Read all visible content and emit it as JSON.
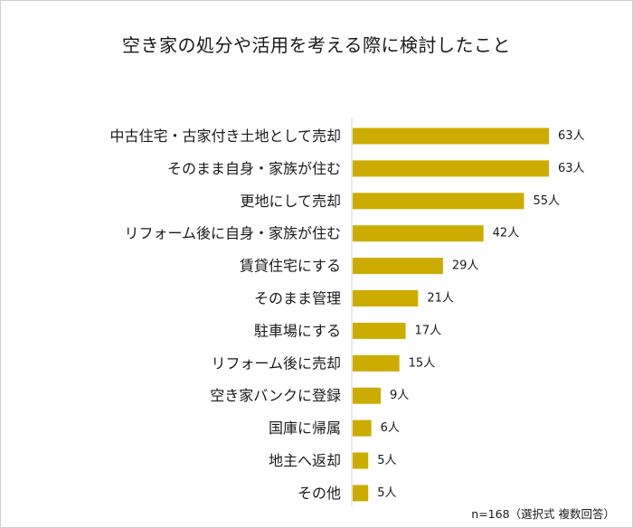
{
  "chart_data": {
    "type": "bar",
    "orientation": "horizontal",
    "title": "空き家の処分や活用を考える際に検討したこと",
    "note": "n=168（選択式 複数回答）",
    "value_suffix": "人",
    "bar_color": "#ccac00",
    "axis_color": "#d0d0d0",
    "text_color": "#1a1a1a",
    "xlim": [
      0,
      63
    ],
    "grid": false,
    "categories": [
      "中古住宅・古家付き土地として売却",
      "そのまま自身・家族が住む",
      "更地にして売却",
      "リフォーム後に自身・家族が住む",
      "賃貸住宅にする",
      "そのまま管理",
      "駐車場にする",
      "リフォーム後に売却",
      "空き家バンクに登録",
      "国庫に帰属",
      "地主へ返却",
      "その他"
    ],
    "values": [
      63,
      63,
      55,
      42,
      29,
      21,
      17,
      15,
      9,
      6,
      5,
      5
    ]
  }
}
